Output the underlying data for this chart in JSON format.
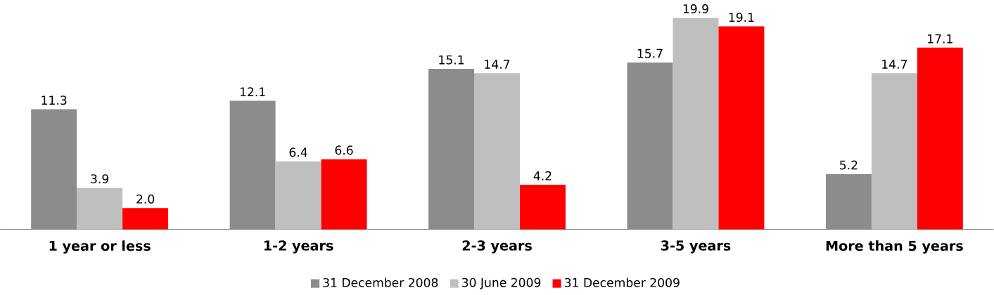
{
  "chart_data": {
    "type": "bar",
    "categories": [
      "1 year or less",
      "1-2 years",
      "2-3 years",
      "3-5 years",
      "More than 5 years"
    ],
    "series": [
      {
        "name": "31 December 2008",
        "color": "#8c8c8c",
        "values": [
          11.3,
          12.1,
          15.1,
          15.7,
          5.2
        ],
        "value_labels": [
          "11.3",
          "12.1",
          "15.1",
          "15.7",
          "5.2"
        ]
      },
      {
        "name": "30 June 2009",
        "color": "#bfbfbf",
        "values": [
          3.9,
          6.4,
          14.7,
          19.9,
          14.7
        ],
        "value_labels": [
          "3.9",
          "6.4",
          "14.7",
          "19.9",
          "14.7"
        ]
      },
      {
        "name": "31 December 2009",
        "color": "#ff0000",
        "values": [
          2.0,
          6.6,
          4.2,
          19.1,
          17.1
        ],
        "value_labels": [
          "2.0",
          "6.6",
          "4.2",
          "19.1",
          "17.1"
        ]
      }
    ],
    "ylim": [
      0,
      20
    ],
    "tick_labels": "x",
    "legend": "bottom"
  }
}
